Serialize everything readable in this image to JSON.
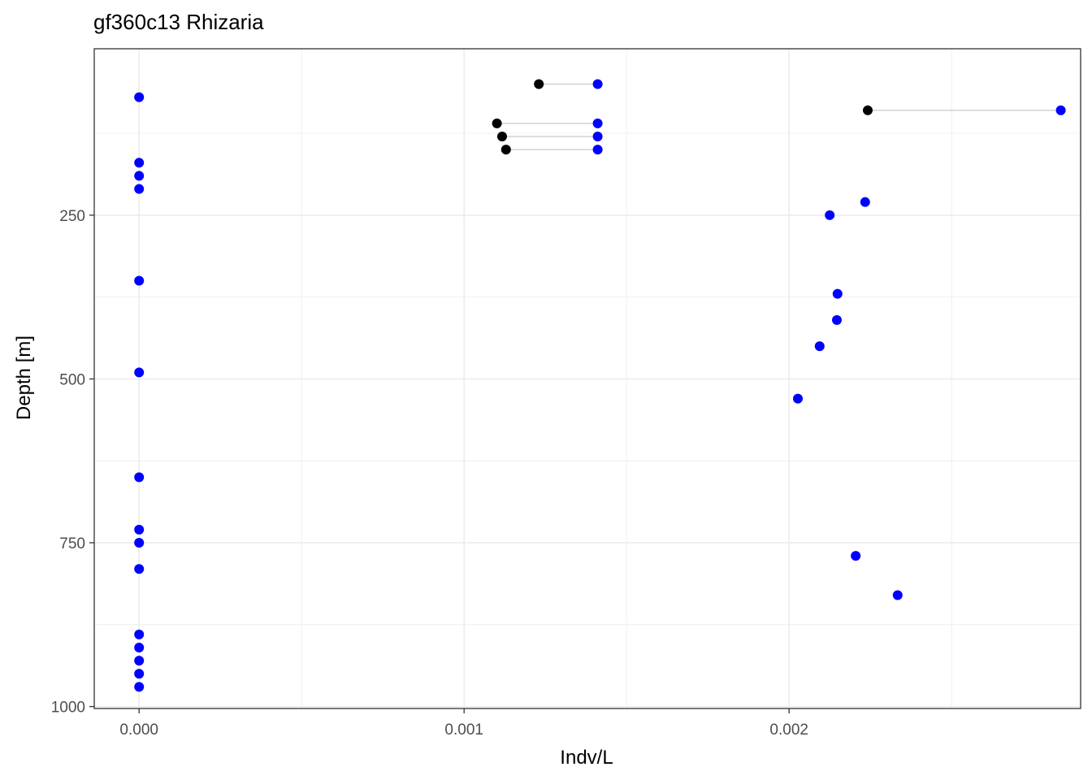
{
  "chart_data": {
    "type": "scatter",
    "title": "gf360c13 Rhizaria",
    "xlabel": "Indv/L",
    "ylabel": "Depth [m]",
    "xlim": [
      -0.000138,
      0.002897
    ],
    "ylim": [
      1003,
      -4
    ],
    "y_reversed": true,
    "grid": true,
    "x_ticks": [
      0.0,
      0.001,
      0.002
    ],
    "x_tick_labels": [
      "0.000",
      "0.001",
      "0.002"
    ],
    "y_ticks": [
      250,
      500,
      750,
      1000
    ],
    "y_tick_labels": [
      "250",
      "500",
      "750",
      "1000"
    ],
    "colors": {
      "blue": "#0000ff",
      "black": "#000000",
      "segment": "#d3d3d3",
      "grid": "#ebebeb"
    },
    "points": [
      {
        "x": 0.0,
        "y": 70,
        "color": "blue"
      },
      {
        "x": 0.0,
        "y": 170,
        "color": "blue"
      },
      {
        "x": 0.0,
        "y": 190,
        "color": "blue"
      },
      {
        "x": 0.0,
        "y": 210,
        "color": "blue"
      },
      {
        "x": 0.0,
        "y": 350,
        "color": "blue"
      },
      {
        "x": 0.0,
        "y": 490,
        "color": "blue"
      },
      {
        "x": 0.0,
        "y": 650,
        "color": "blue"
      },
      {
        "x": 0.0,
        "y": 730,
        "color": "blue"
      },
      {
        "x": 0.0,
        "y": 750,
        "color": "blue"
      },
      {
        "x": 0.0,
        "y": 790,
        "color": "blue"
      },
      {
        "x": 0.0,
        "y": 890,
        "color": "blue"
      },
      {
        "x": 0.0,
        "y": 910,
        "color": "blue"
      },
      {
        "x": 0.0,
        "y": 930,
        "color": "blue"
      },
      {
        "x": 0.0,
        "y": 950,
        "color": "blue"
      },
      {
        "x": 0.0,
        "y": 970,
        "color": "blue"
      },
      {
        "x": 0.001411,
        "y": 50,
        "color": "blue"
      },
      {
        "x": 0.001411,
        "y": 110,
        "color": "blue"
      },
      {
        "x": 0.001411,
        "y": 130,
        "color": "blue"
      },
      {
        "x": 0.001411,
        "y": 150,
        "color": "blue"
      },
      {
        "x": 0.002836,
        "y": 90,
        "color": "blue"
      },
      {
        "x": 0.002234,
        "y": 230,
        "color": "blue"
      },
      {
        "x": 0.002125,
        "y": 250,
        "color": "blue"
      },
      {
        "x": 0.002149,
        "y": 370,
        "color": "blue"
      },
      {
        "x": 0.002147,
        "y": 410,
        "color": "blue"
      },
      {
        "x": 0.002094,
        "y": 450,
        "color": "blue"
      },
      {
        "x": 0.002027,
        "y": 530,
        "color": "blue"
      },
      {
        "x": 0.002205,
        "y": 770,
        "color": "blue"
      },
      {
        "x": 0.002334,
        "y": 830,
        "color": "blue"
      },
      {
        "x": 0.00123,
        "y": 50,
        "color": "black"
      },
      {
        "x": 0.001101,
        "y": 110,
        "color": "black"
      },
      {
        "x": 0.001117,
        "y": 130,
        "color": "black"
      },
      {
        "x": 0.001129,
        "y": 150,
        "color": "black"
      },
      {
        "x": 0.002242,
        "y": 90,
        "color": "black"
      }
    ],
    "segments": [
      {
        "x1": 0.00123,
        "x2": 0.001411,
        "y": 50
      },
      {
        "x1": 0.001101,
        "x2": 0.001411,
        "y": 110
      },
      {
        "x1": 0.001117,
        "x2": 0.001411,
        "y": 130
      },
      {
        "x1": 0.001129,
        "x2": 0.001411,
        "y": 150
      },
      {
        "x1": 0.002242,
        "x2": 0.002836,
        "y": 90
      }
    ]
  }
}
